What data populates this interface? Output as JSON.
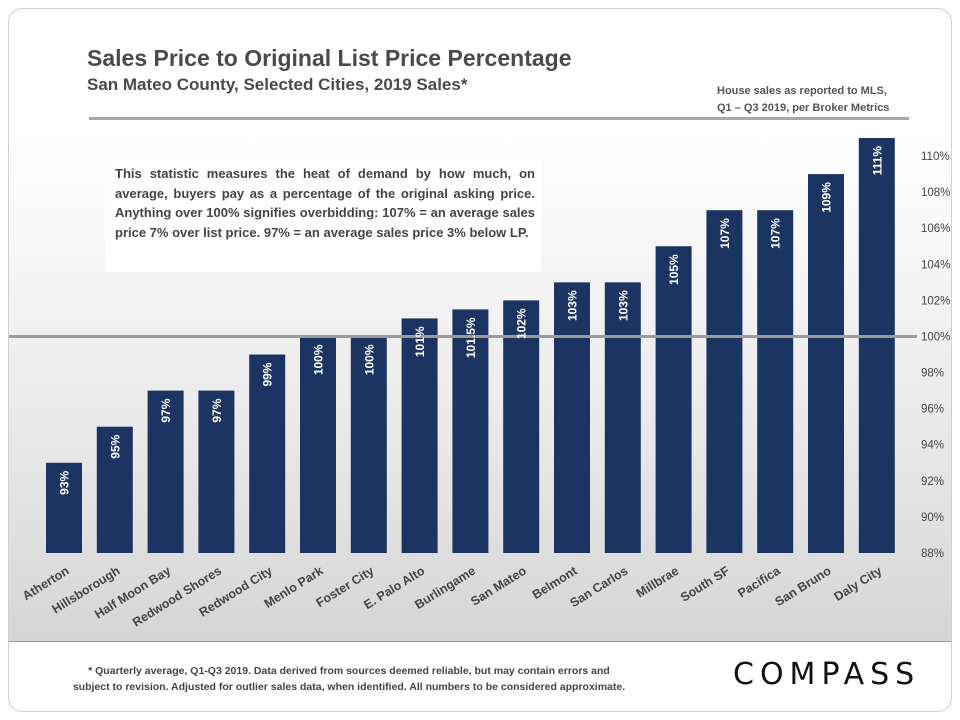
{
  "header": {
    "title": "Sales Price to Original List Price Percentage",
    "subtitle": "San Mateo County, Selected Cities, 2019 Sales*",
    "source_line1": "House sales as reported to MLS,",
    "source_line2": "Q1 – Q3 2019, per Broker Metrics"
  },
  "description": "This statistic measures the heat of demand by how much, on average, buyers pay as a percentage of the original asking price. Anything over 100% signifies overbidding:  107% = an average sales price 7% over list price. 97% = an average sales price 3% below LP.",
  "footer": {
    "note_line1": "* Quarterly average, Q1-Q3 2019. Data derived from sources deemed reliable, but may contain errors and",
    "note_line2": "subject to revision. Adjusted for outlier sales data, when identified. All numbers to be considered approximate.",
    "brand": "COMPASS"
  },
  "colors": {
    "bar": "#1b3461",
    "reference_line": "#9b9b9b",
    "text": "#444444"
  },
  "chart_data": {
    "type": "bar",
    "categories": [
      "Atherton",
      "Hillsborough",
      "Half Moon Bay",
      "Redwood Shores",
      "Redwood City",
      "Menlo Park",
      "Foster City",
      "E. Palo Alto",
      "Burlingame",
      "San Mateo",
      "Belmont",
      "San Carlos",
      "Millbrae",
      "South SF",
      "Pacifica",
      "San Bruno",
      "Daly City"
    ],
    "values": [
      93,
      95,
      97,
      97,
      99,
      100,
      100,
      101,
      101.5,
      102,
      103,
      103,
      105,
      107,
      107,
      109,
      111
    ],
    "data_labels": [
      "93%",
      "95%",
      "97%",
      "97%",
      "99%",
      "100%",
      "100%",
      "101%",
      "101.5%",
      "102%",
      "103%",
      "103%",
      "105%",
      "107%",
      "107%",
      "109%",
      "111%"
    ],
    "y_ticks": [
      88,
      90,
      92,
      94,
      96,
      98,
      100,
      102,
      104,
      106,
      108,
      110
    ],
    "y_tick_labels": [
      "88%",
      "90%",
      "92%",
      "94%",
      "96%",
      "98%",
      "100%",
      "102%",
      "104%",
      "106%",
      "108%",
      "110%"
    ],
    "ylim": [
      88,
      111
    ],
    "y_axis_position": "right",
    "reference_line": 100,
    "grid": false,
    "legend": "none"
  }
}
